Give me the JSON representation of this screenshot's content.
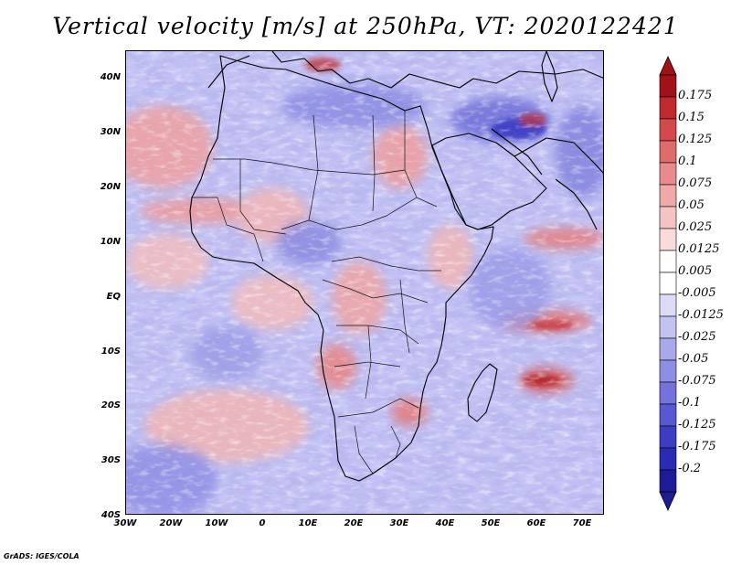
{
  "title": "Vertical velocity [m/s] at 250hPa, VT: 2020122421",
  "credit": "GrADS: IGES/COLA",
  "map": {
    "lat_labels": [
      "40N",
      "30N",
      "20N",
      "10N",
      "EQ",
      "10S",
      "20S",
      "30S",
      "40S"
    ],
    "lon_labels": [
      "30W",
      "20W",
      "10W",
      "0",
      "10E",
      "20E",
      "30E",
      "40E",
      "50E",
      "60E",
      "70E"
    ]
  },
  "colorbar": {
    "labels": [
      "0.175",
      "0.15",
      "0.125",
      "0.1",
      "0.075",
      "0.05",
      "0.025",
      "0.0125",
      "0.005",
      "-0.005",
      "-0.0125",
      "-0.025",
      "-0.05",
      "-0.075",
      "-0.1",
      "-0.125",
      "-0.175",
      "-0.2"
    ],
    "colors": [
      "#a01218",
      "#c02a2e",
      "#d34a4c",
      "#df6b6c",
      "#e88b8c",
      "#efa9a9",
      "#f4c4c4",
      "#f8dcdc",
      "#ffffff",
      "#ffffff",
      "#dcdcf6",
      "#c3c3f0",
      "#a9a9ea",
      "#8e8ee3",
      "#7373db",
      "#5858d2",
      "#3d3dc4",
      "#2a2ab4",
      "#1c1c96"
    ]
  }
}
